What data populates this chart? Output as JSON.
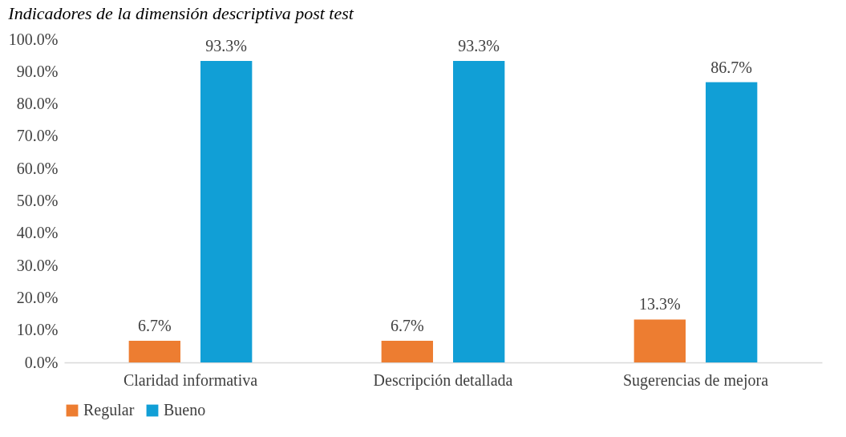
{
  "chart_data": {
    "type": "bar",
    "title": "Indicadores de la dimensión descriptiva post test",
    "categories": [
      "Claridad informativa",
      "Descripción detallada",
      "Sugerencias de mejora"
    ],
    "series": [
      {
        "name": "Regular",
        "color": "#ed7d31",
        "values": [
          6.7,
          6.7,
          13.3
        ],
        "value_labels": [
          "6.7%",
          "6.7%",
          "13.3%"
        ]
      },
      {
        "name": "Bueno",
        "color": "#119fd6",
        "values": [
          93.3,
          93.3,
          86.7
        ],
        "value_labels": [
          "93.3%",
          "93.3%",
          "86.7%"
        ]
      }
    ],
    "ylim": [
      0,
      100
    ],
    "yticks": [
      {
        "value": 0,
        "label": "0.0%"
      },
      {
        "value": 10,
        "label": "10.0%"
      },
      {
        "value": 20,
        "label": "20.0%"
      },
      {
        "value": 30,
        "label": "30.0%"
      },
      {
        "value": 40,
        "label": "40.0%"
      },
      {
        "value": 50,
        "label": "50.0%"
      },
      {
        "value": 60,
        "label": "60.0%"
      },
      {
        "value": 70,
        "label": "70.0%"
      },
      {
        "value": 80,
        "label": "80.0%"
      },
      {
        "value": 90,
        "label": "90.0%"
      },
      {
        "value": 100,
        "label": "100.0%"
      }
    ],
    "grid": false,
    "legend": "bottom"
  }
}
